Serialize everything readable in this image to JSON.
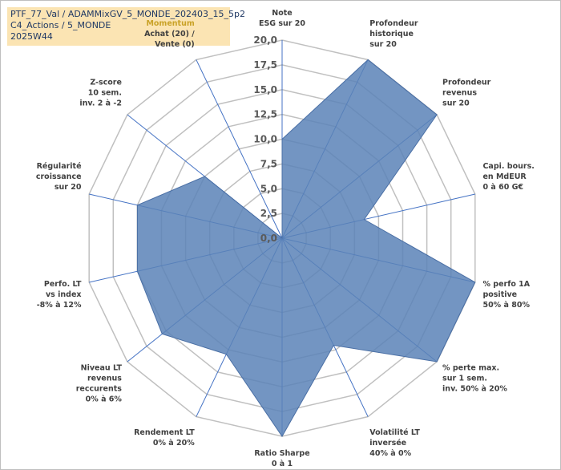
{
  "title_lines": [
    "PTF_77_Val / ADAMMixGV_5_MONDE_202403_15_5p2",
    "C4_Actions / 5_MONDE",
    "2025W44"
  ],
  "chart_data": {
    "type": "radar",
    "rmin": 0,
    "rmax": 20,
    "ticks": [
      "0,0",
      "2,5",
      "5,0",
      "7,5",
      "10,0",
      "12,5",
      "15,0",
      "17,5",
      "20,0"
    ],
    "tick_values": [
      0,
      2.5,
      5,
      7.5,
      10,
      12.5,
      15,
      17.5,
      20
    ],
    "grid": true,
    "axes": [
      {
        "label": [
          "Note",
          "ESG sur 20"
        ],
        "value": 10.0
      },
      {
        "label": [
          "Profondeur",
          "historique",
          "sur 20"
        ],
        "value": 20.0
      },
      {
        "label": [
          "Profondeur",
          "revenus",
          "sur 20"
        ],
        "value": 20.0
      },
      {
        "label": [
          "Capi. bours.",
          "en MdEUR",
          "0 à 60 G€"
        ],
        "value": 8.5
      },
      {
        "label": [
          "% perfo 1A",
          "positive",
          "50% à 80%"
        ],
        "value": 20.0
      },
      {
        "label": [
          "% perte max.",
          "sur 1 sem.",
          "inv. 50% à 20%"
        ],
        "value": 20.0
      },
      {
        "label": [
          "Volatilité LT",
          "inversée",
          "40% à 0%"
        ],
        "value": 12.0
      },
      {
        "label": [
          "Ratio Sharpe",
          "0 à 1"
        ],
        "value": 20.0
      },
      {
        "label": [
          "Rendement LT",
          "0% à 20%"
        ],
        "value": 13.0
      },
      {
        "label": [
          "Niveau LT",
          "revenus",
          "reccurents",
          "0% à 6%"
        ],
        "value": 15.5
      },
      {
        "label": [
          "Perfo. LT",
          "vs index",
          "-8% à 12%"
        ],
        "value": 15.0
      },
      {
        "label": [
          "Régularité",
          "croissance",
          "sur 20"
        ],
        "value": 15.0
      },
      {
        "label": [
          "Z-score",
          "10 sem.",
          "inv. 2 à -2"
        ],
        "value": 10.0
      },
      {
        "label": [
          "Momentum",
          "Achat (20) /",
          "Vente (0)"
        ],
        "value": 0.0
      }
    ],
    "colors": {
      "fill": "#5b83b7",
      "stroke": "#4a6fa5",
      "spoke": "#4472c4",
      "grid": "#c0c0c0",
      "momentum_label": "#c9a227"
    }
  }
}
